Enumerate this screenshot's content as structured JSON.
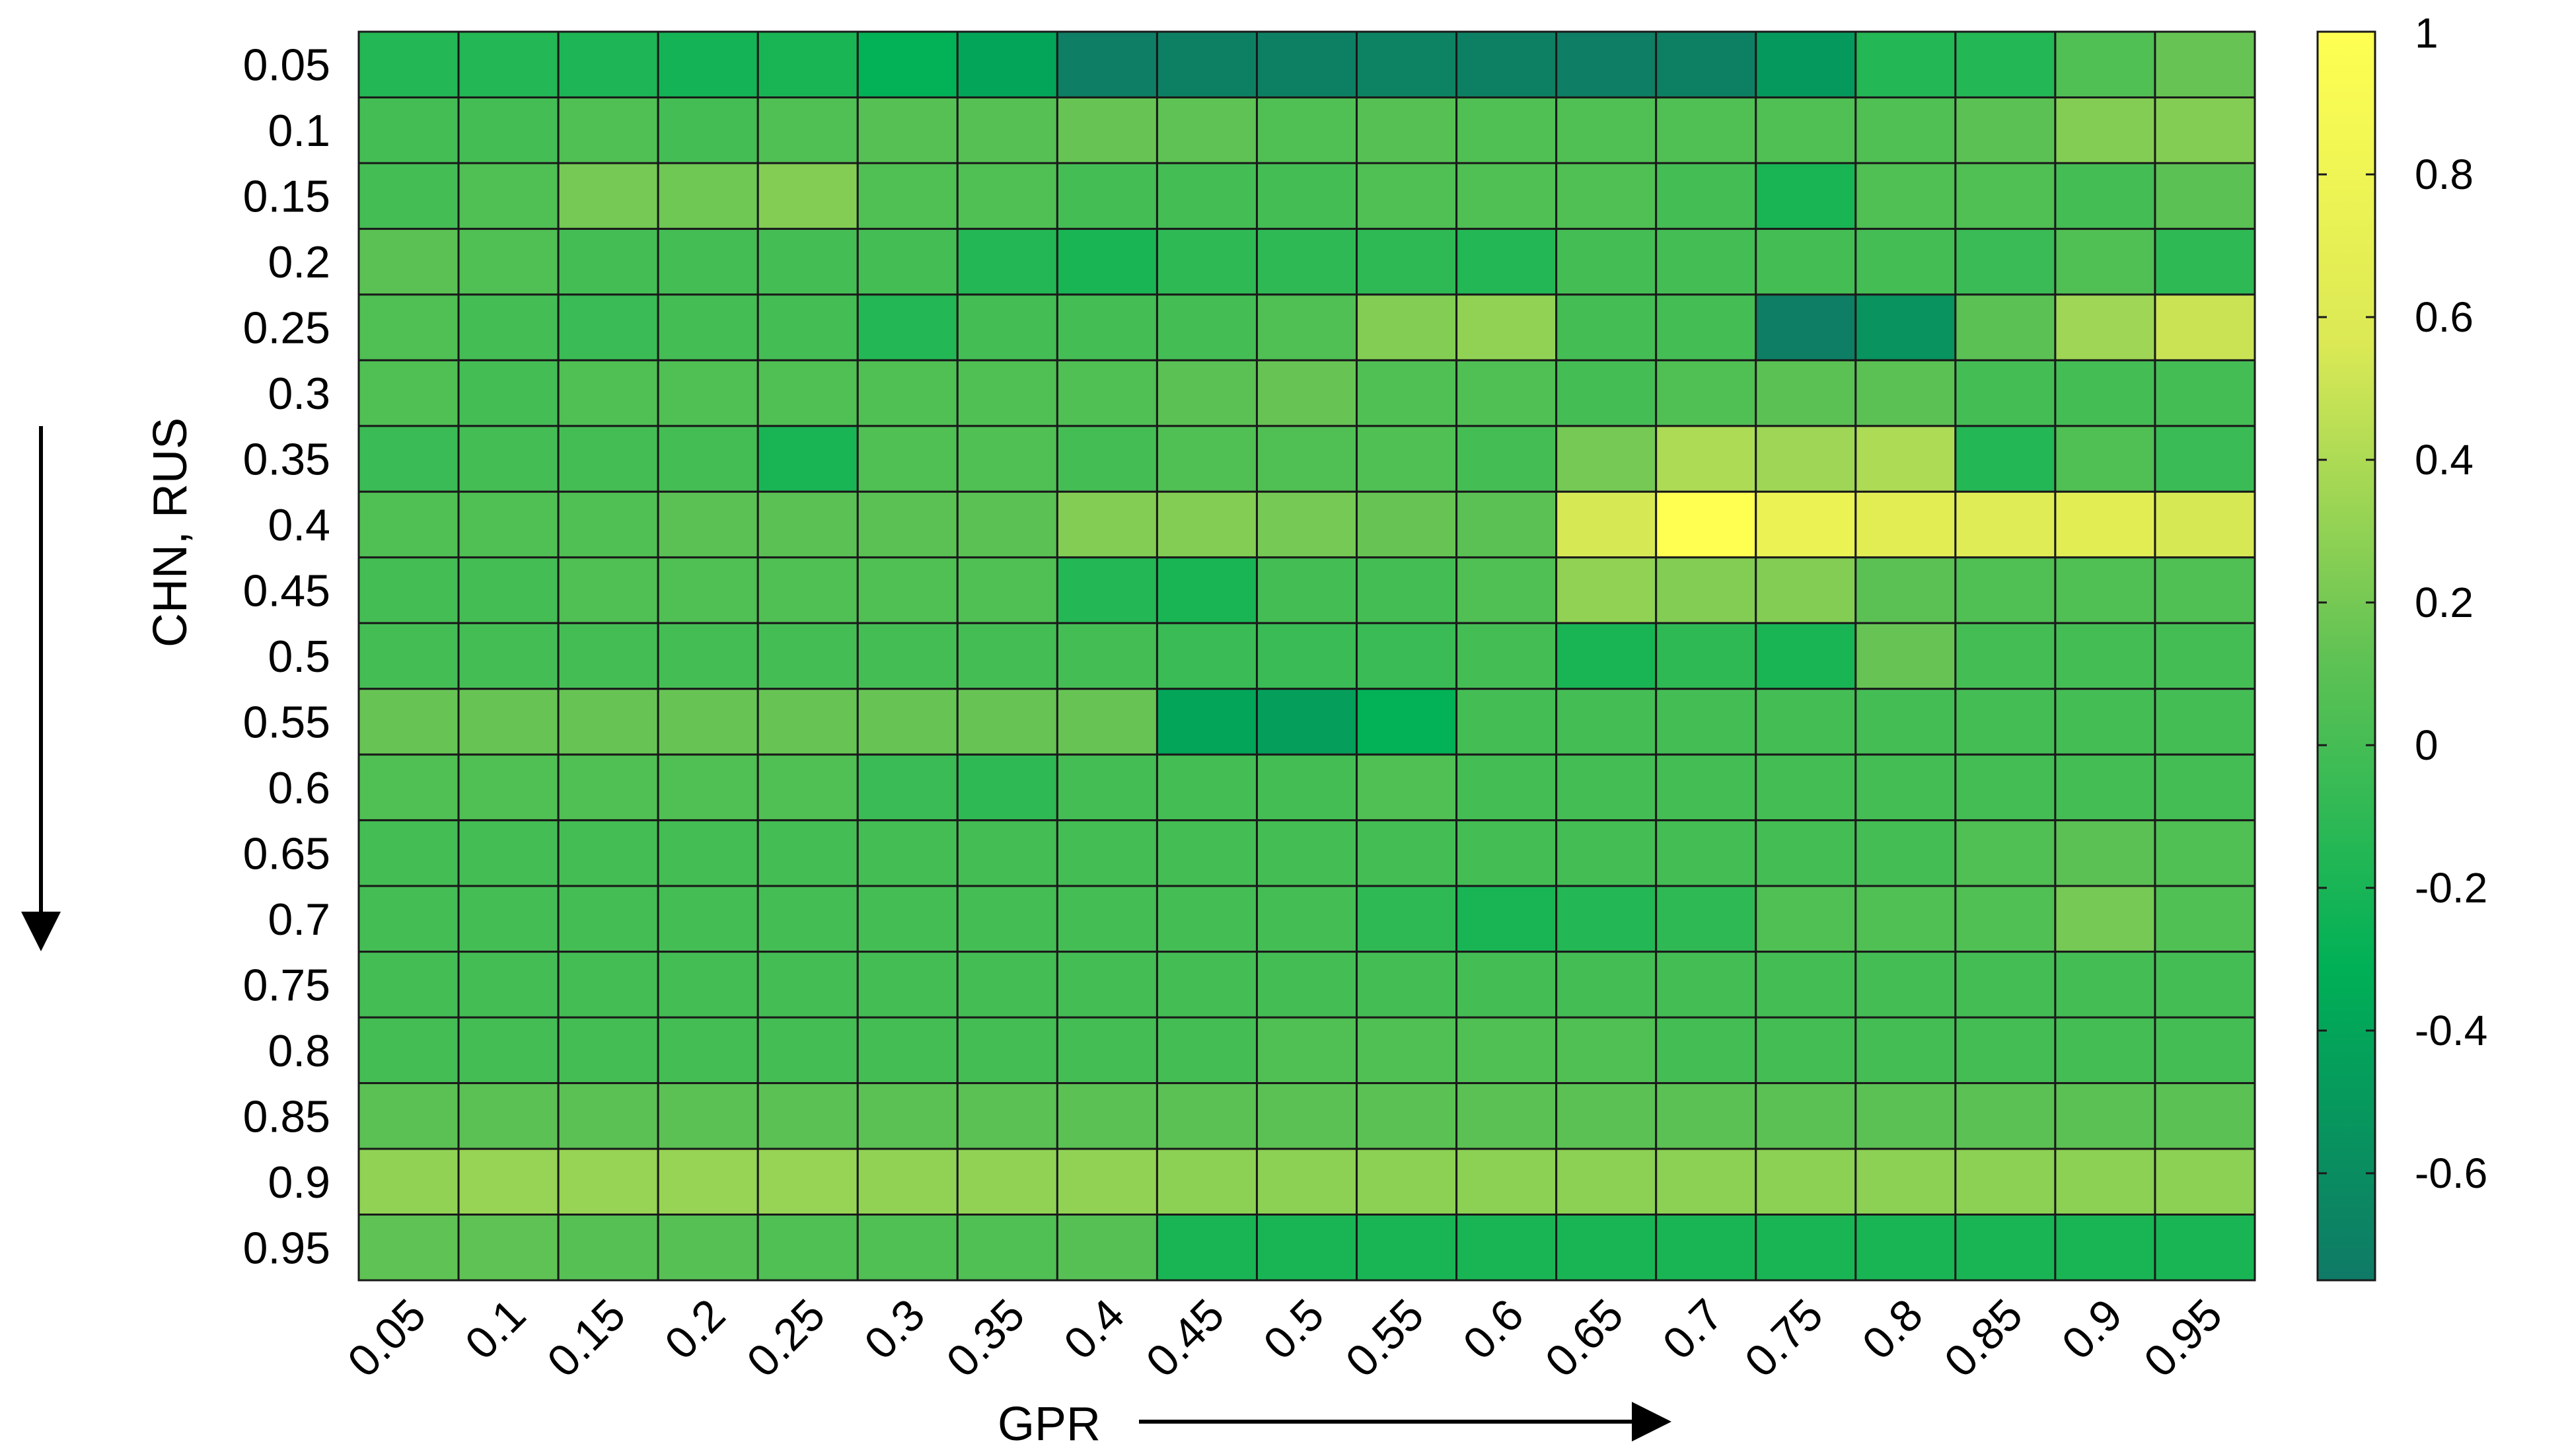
{
  "chart_data": {
    "type": "heatmap",
    "title": "",
    "xlabel": "GPR",
    "ylabel": "CHN, RUS",
    "x": [
      "0.05",
      "0.1",
      "0.15",
      "0.2",
      "0.25",
      "0.3",
      "0.35",
      "0.4",
      "0.45",
      "0.5",
      "0.55",
      "0.6",
      "0.65",
      "0.7",
      "0.75",
      "0.8",
      "0.85",
      "0.9",
      "0.95"
    ],
    "y": [
      "0.05",
      "0.1",
      "0.15",
      "0.2",
      "0.25",
      "0.3",
      "0.35",
      "0.4",
      "0.45",
      "0.5",
      "0.55",
      "0.6",
      "0.65",
      "0.7",
      "0.75",
      "0.8",
      "0.85",
      "0.9",
      "0.95"
    ],
    "values": [
      [
        -0.15,
        -0.15,
        -0.18,
        -0.22,
        -0.2,
        -0.3,
        -0.4,
        -0.72,
        -0.7,
        -0.7,
        -0.68,
        -0.7,
        -0.72,
        -0.7,
        -0.5,
        -0.15,
        -0.15,
        0.05,
        0.15
      ],
      [
        0.0,
        0.0,
        0.05,
        0.0,
        0.05,
        0.08,
        0.08,
        0.15,
        0.12,
        0.05,
        0.08,
        0.05,
        0.05,
        0.05,
        0.05,
        0.05,
        0.1,
        0.25,
        0.25
      ],
      [
        0.0,
        0.05,
        0.2,
        0.18,
        0.25,
        0.05,
        0.05,
        0.0,
        0.0,
        0.0,
        0.05,
        0.05,
        0.05,
        0.0,
        -0.2,
        0.05,
        0.05,
        0.0,
        0.1
      ],
      [
        0.1,
        0.05,
        0.0,
        0.0,
        0.0,
        0.0,
        -0.15,
        -0.2,
        -0.1,
        -0.1,
        -0.1,
        -0.15,
        0.0,
        0.0,
        0.0,
        0.0,
        -0.05,
        0.05,
        -0.1
      ],
      [
        0.05,
        0.0,
        -0.05,
        0.0,
        0.0,
        -0.15,
        0.0,
        0.0,
        0.0,
        0.05,
        0.25,
        0.3,
        0.0,
        0.0,
        -0.72,
        -0.55,
        0.1,
        0.35,
        0.5
      ],
      [
        0.05,
        0.0,
        0.05,
        0.05,
        0.05,
        0.05,
        0.05,
        0.05,
        0.1,
        0.15,
        0.05,
        0.05,
        0.0,
        0.05,
        0.1,
        0.1,
        0.0,
        0.0,
        0.0
      ],
      [
        -0.05,
        0.0,
        0.0,
        0.0,
        -0.2,
        0.05,
        0.05,
        0.0,
        0.05,
        0.05,
        0.05,
        0.0,
        0.2,
        0.4,
        0.35,
        0.4,
        -0.15,
        0.05,
        -0.05
      ],
      [
        0.05,
        0.05,
        0.05,
        0.1,
        0.1,
        0.1,
        0.1,
        0.25,
        0.25,
        0.2,
        0.15,
        0.1,
        0.55,
        1.0,
        0.75,
        0.65,
        0.62,
        0.65,
        0.55
      ],
      [
        0.0,
        0.0,
        0.05,
        0.05,
        0.05,
        0.05,
        0.05,
        -0.15,
        -0.2,
        0.0,
        0.0,
        0.05,
        0.3,
        0.25,
        0.25,
        0.1,
        0.05,
        0.05,
        0.05
      ],
      [
        0.0,
        0.0,
        0.0,
        0.0,
        0.0,
        0.0,
        0.0,
        0.0,
        -0.05,
        -0.05,
        -0.05,
        0.0,
        -0.2,
        -0.1,
        -0.2,
        0.15,
        0.0,
        0.0,
        0.0
      ],
      [
        0.15,
        0.15,
        0.15,
        0.15,
        0.15,
        0.15,
        0.15,
        0.15,
        -0.4,
        -0.45,
        -0.3,
        0.0,
        0.0,
        0.0,
        0.0,
        0.0,
        0.0,
        0.0,
        0.0
      ],
      [
        0.05,
        0.05,
        0.05,
        0.05,
        0.05,
        -0.05,
        -0.1,
        0.0,
        0.0,
        0.0,
        0.05,
        0.0,
        0.0,
        0.0,
        0.0,
        0.0,
        0.0,
        0.0,
        0.0
      ],
      [
        0.0,
        0.0,
        0.0,
        0.0,
        0.0,
        0.0,
        0.0,
        0.0,
        0.0,
        0.0,
        0.0,
        0.0,
        0.0,
        0.0,
        0.0,
        0.0,
        0.05,
        0.1,
        0.05
      ],
      [
        0.0,
        0.0,
        0.0,
        0.0,
        0.0,
        0.0,
        0.0,
        0.0,
        0.0,
        0.0,
        -0.1,
        -0.2,
        -0.15,
        -0.1,
        0.05,
        0.05,
        0.05,
        0.2,
        0.05
      ],
      [
        0.0,
        0.0,
        0.0,
        0.0,
        0.0,
        0.0,
        0.0,
        0.0,
        0.0,
        0.0,
        0.0,
        0.0,
        0.0,
        0.0,
        0.0,
        0.0,
        0.0,
        0.0,
        0.0
      ],
      [
        0.0,
        0.0,
        0.0,
        0.0,
        0.0,
        0.0,
        0.0,
        0.0,
        0.0,
        0.05,
        0.05,
        0.05,
        0.05,
        0.0,
        0.0,
        0.0,
        0.0,
        0.0,
        0.0
      ],
      [
        0.1,
        0.1,
        0.1,
        0.1,
        0.1,
        0.1,
        0.1,
        0.1,
        0.1,
        0.1,
        0.1,
        0.1,
        0.1,
        0.1,
        0.1,
        0.1,
        0.1,
        0.1,
        0.1
      ],
      [
        0.3,
        0.32,
        0.32,
        0.32,
        0.32,
        0.3,
        0.3,
        0.3,
        0.28,
        0.28,
        0.28,
        0.28,
        0.28,
        0.28,
        0.28,
        0.28,
        0.28,
        0.28,
        0.28
      ],
      [
        0.12,
        0.12,
        0.08,
        0.08,
        0.05,
        0.05,
        0.05,
        0.08,
        -0.2,
        -0.2,
        -0.2,
        -0.2,
        -0.2,
        -0.2,
        -0.2,
        -0.2,
        -0.2,
        -0.2,
        -0.2
      ]
    ],
    "colorbar": {
      "ticks": [
        1,
        0.8,
        0.6,
        0.4,
        0.2,
        0,
        -0.2,
        -0.4,
        -0.6
      ],
      "tick_labels": [
        "1",
        "0.8",
        "0.6",
        "0.4",
        "0.2",
        "0",
        "-0.2",
        "-0.4",
        "-0.6"
      ],
      "range": [
        -0.75,
        1.0
      ],
      "colors": [
        "#0f7a66",
        "#00b056",
        "#60c254",
        "#dbe955",
        "#ffff52"
      ]
    },
    "grid": true,
    "legend": "colorbar-right"
  }
}
